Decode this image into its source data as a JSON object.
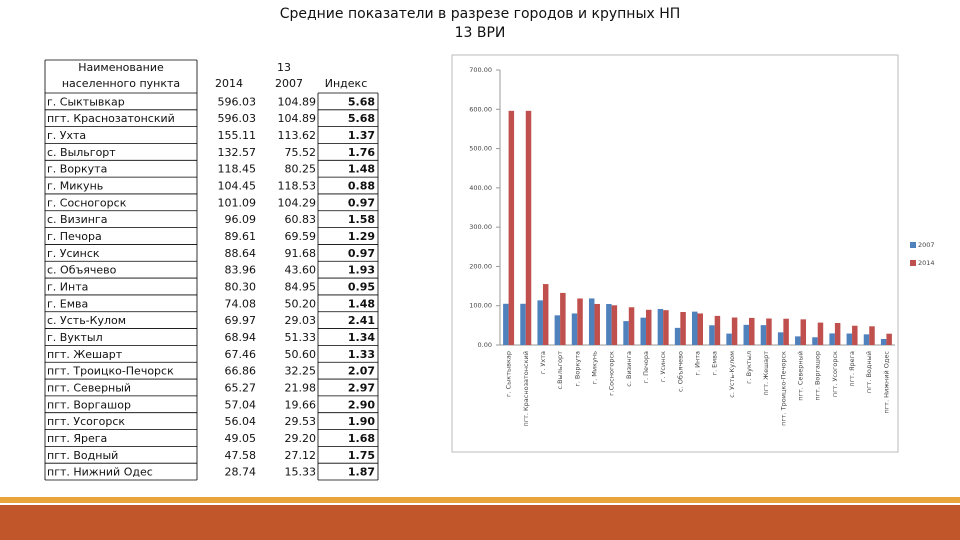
{
  "title": {
    "line1": "Средние показатели в разрезе городов и крупных НП",
    "line2": "13 ВРИ"
  },
  "table": {
    "header": {
      "name": "Наименование населенного пункта",
      "group": "13",
      "columns": [
        "2014",
        "2007",
        "Индекс"
      ]
    },
    "rows": [
      [
        "г. Сыктывкар",
        "596.03",
        "104.89",
        "5.68"
      ],
      [
        "пгт. Краснозатонский",
        "596.03",
        "104.89",
        "5.68"
      ],
      [
        "г. Ухта",
        "155.11",
        "113.62",
        "1.37"
      ],
      [
        "с. Выльгорт",
        "132.57",
        "75.52",
        "1.76"
      ],
      [
        "г. Воркута",
        "118.45",
        "80.25",
        "1.48"
      ],
      [
        "г. Микунь",
        "104.45",
        "118.53",
        "0.88"
      ],
      [
        "г. Сосногорск",
        "101.09",
        "104.29",
        "0.97"
      ],
      [
        "с. Визинга",
        "96.09",
        "60.83",
        "1.58"
      ],
      [
        "г. Печора",
        "89.61",
        "69.59",
        "1.29"
      ],
      [
        "г. Усинск",
        "88.64",
        "91.68",
        "0.97"
      ],
      [
        "с. Объячево",
        "83.96",
        "43.60",
        "1.93"
      ],
      [
        "г. Инта",
        "80.30",
        "84.95",
        "0.95"
      ],
      [
        "г. Емва",
        "74.08",
        "50.20",
        "1.48"
      ],
      [
        "с. Усть-Кулом",
        "69.97",
        "29.03",
        "2.41"
      ],
      [
        "г. Вуктыл",
        "68.94",
        "51.33",
        "1.34"
      ],
      [
        "пгт. Жешарт",
        "67.46",
        "50.60",
        "1.33"
      ],
      [
        "пгт. Троицко-Печорск",
        "66.86",
        "32.25",
        "2.07"
      ],
      [
        "пгт. Северный",
        "65.27",
        "21.98",
        "2.97"
      ],
      [
        "пгт. Воргашор",
        "57.04",
        "19.66",
        "2.90"
      ],
      [
        "пгт. Усогорск",
        "56.04",
        "29.53",
        "1.90"
      ],
      [
        "пгт. Ярега",
        "49.05",
        "29.20",
        "1.68"
      ],
      [
        "пгт. Водный",
        "47.58",
        "27.12",
        "1.75"
      ],
      [
        "пгт. Нижний Одес",
        "28.74",
        "15.33",
        "1.87"
      ]
    ]
  },
  "chart_data": {
    "type": "bar",
    "categories": [
      "г. Сыктывкар",
      "пгт. Краснозатонский",
      "г. Ухта",
      "с.Выльгорт",
      "г. Воркута",
      "г. Микунь",
      "г.Сосногорск",
      "с. Визинга",
      "г. Печора",
      "г. Усинск",
      "с. Объячево",
      "г. Инта",
      "г. Емва",
      "с. Усть-Кулом",
      "г. Вуктыл",
      "пгт. Жешарт",
      "пгт. Троицко-Печорск",
      "пгт. Северный",
      "пгт. Воргашор",
      "пгт. Усогорск",
      "пгт. Ярега",
      "пгт. Водный",
      "пгт. Нижний Одес"
    ],
    "series": [
      {
        "name": "2007",
        "color": "#4f81bd",
        "values": [
          104.89,
          104.89,
          113.62,
          75.52,
          80.25,
          118.53,
          104.29,
          60.83,
          69.59,
          91.68,
          43.6,
          84.95,
          50.2,
          29.03,
          51.33,
          50.6,
          32.25,
          21.98,
          19.66,
          29.53,
          29.2,
          27.12,
          15.33
        ]
      },
      {
        "name": "2014",
        "color": "#c0504d",
        "values": [
          596.03,
          596.03,
          155.11,
          132.57,
          118.45,
          104.45,
          101.09,
          96.09,
          89.61,
          88.64,
          83.96,
          80.3,
          74.08,
          69.97,
          68.94,
          67.46,
          66.86,
          65.27,
          57.04,
          56.04,
          49.05,
          47.58,
          28.74
        ]
      }
    ],
    "ylim": [
      0,
      700
    ],
    "yticks": [
      {
        "value": 0,
        "label": "0.00"
      },
      {
        "value": 100,
        "label": "100.00"
      },
      {
        "value": 200,
        "label": "200.00"
      },
      {
        "value": 300,
        "label": "300.00"
      },
      {
        "value": 400,
        "label": "400.00"
      },
      {
        "value": 500,
        "label": "500.00"
      },
      {
        "value": 600,
        "label": "600.00"
      },
      {
        "value": 700,
        "label": "700.00"
      }
    ],
    "grid": false,
    "legend": "right"
  }
}
